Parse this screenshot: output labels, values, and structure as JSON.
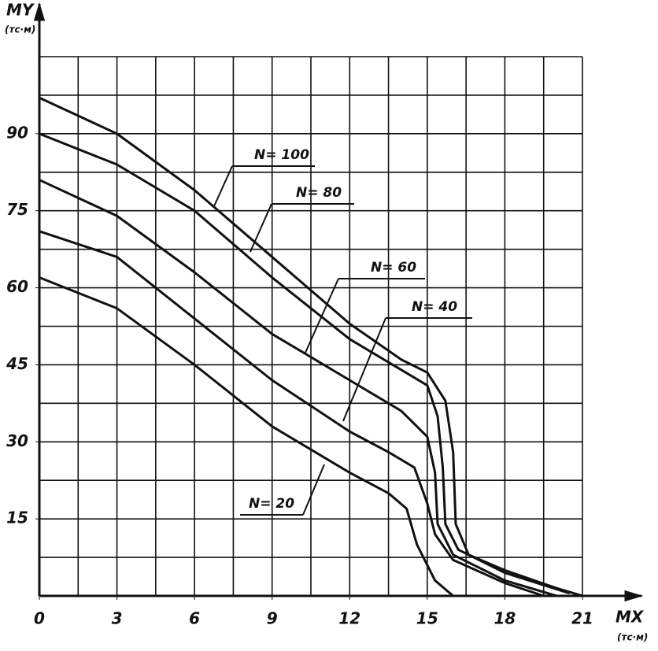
{
  "chart_data": {
    "type": "line",
    "ylabel": "MY",
    "yunit": "(тс·м)",
    "xlabel": "MX",
    "xunit": "(тс·м)",
    "xlim": [
      0,
      21
    ],
    "ylim": [
      0,
      105
    ],
    "xticks": [
      0,
      3,
      6,
      9,
      12,
      15,
      18,
      21
    ],
    "yticks": [
      15,
      30,
      45,
      60,
      75,
      90
    ],
    "xgrid": [
      1.5,
      3,
      4.5,
      6,
      7.5,
      9,
      10.5,
      12,
      13.5,
      15,
      16.5,
      18,
      19.5,
      21
    ],
    "ygrid": [
      7.5,
      15,
      22.5,
      30,
      37.5,
      45,
      52.5,
      60,
      67.5,
      75,
      82.5,
      90,
      97.5,
      105
    ],
    "grid": true,
    "series": [
      {
        "name": "N= 100",
        "color": "#111",
        "x": [
          0,
          3,
          6,
          9,
          12,
          14,
          15,
          15.7,
          16,
          16.1,
          16.6,
          18,
          20,
          21
        ],
        "values": [
          97,
          90,
          79,
          66,
          53,
          46,
          43.5,
          38,
          28,
          14,
          8,
          5,
          1.5,
          0
        ]
      },
      {
        "name": "N= 80",
        "color": "#111",
        "x": [
          0,
          3,
          6,
          9,
          12,
          14,
          15,
          15.4,
          15.6,
          15.7,
          16.2,
          18,
          20.5
        ],
        "values": [
          90,
          84,
          75,
          62,
          50,
          44,
          41,
          35,
          25,
          14,
          9,
          4.5,
          0.5
        ]
      },
      {
        "name": "N= 60",
        "color": "#111",
        "x": [
          0,
          3,
          6,
          9,
          12,
          14,
          15,
          15.3,
          15.4,
          16,
          18,
          20
        ],
        "values": [
          81,
          74,
          63,
          51,
          42,
          36,
          31,
          24,
          14,
          8,
          3,
          0
        ]
      },
      {
        "name": "N= 40",
        "color": "#111",
        "x": [
          0,
          3,
          6,
          9,
          12,
          13.5,
          14.5,
          15,
          15.3,
          16,
          18,
          19.5
        ],
        "values": [
          71,
          66,
          54,
          42,
          32,
          28,
          25,
          18,
          12,
          7,
          2.5,
          0
        ]
      },
      {
        "name": "N= 20",
        "color": "#111",
        "x": [
          0,
          3,
          6,
          9,
          12,
          13.5,
          14.2,
          14.6,
          15.3,
          16
        ],
        "values": [
          62,
          56,
          45,
          33,
          24,
          20,
          17,
          10,
          3,
          0
        ]
      }
    ]
  }
}
